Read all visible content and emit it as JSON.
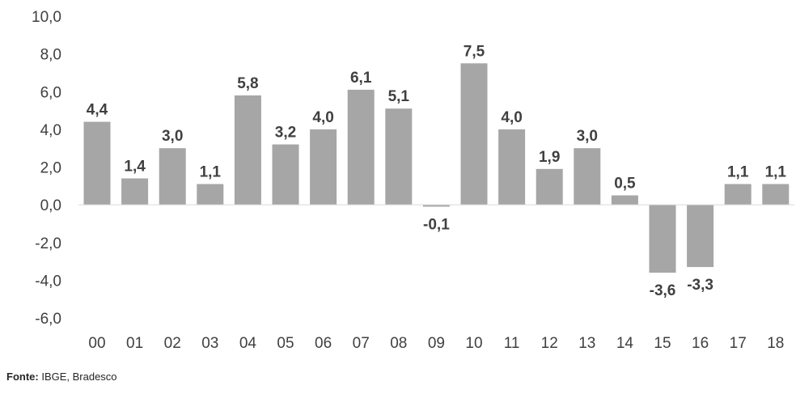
{
  "chart_data": {
    "type": "bar",
    "categories": [
      "00",
      "01",
      "02",
      "03",
      "04",
      "05",
      "06",
      "07",
      "08",
      "09",
      "10",
      "11",
      "12",
      "13",
      "14",
      "15",
      "16",
      "17",
      "18"
    ],
    "values": [
      4.4,
      1.4,
      3.0,
      1.1,
      5.8,
      3.2,
      4.0,
      6.1,
      5.1,
      -0.1,
      7.5,
      4.0,
      1.9,
      3.0,
      0.5,
      -3.6,
      -3.3,
      1.1,
      1.1
    ],
    "data_labels": [
      "4,4",
      "1,4",
      "3,0",
      "1,1",
      "5,8",
      "3,2",
      "4,0",
      "6,1",
      "5,1",
      "-0,1",
      "7,5",
      "4,0",
      "1,9",
      "3,0",
      "0,5",
      "-3,6",
      "-3,3",
      "1,1",
      "1,1"
    ],
    "y_ticks": [
      10,
      8,
      6,
      4,
      2,
      0,
      -2,
      -4,
      -6
    ],
    "y_tick_labels": [
      "10,0",
      "8,0",
      "6,0",
      "4,0",
      "2,0",
      "0,0",
      "-2,0",
      "-4,0",
      "-6,0"
    ],
    "ylim": [
      -6,
      10
    ],
    "title": "",
    "xlabel": "",
    "ylabel": "",
    "grid": false,
    "legend": "none",
    "bar_color": "#a6a6a6",
    "text_color": "#404040"
  },
  "source": {
    "label": "Fonte:",
    "text": " IBGE, Bradesco"
  }
}
